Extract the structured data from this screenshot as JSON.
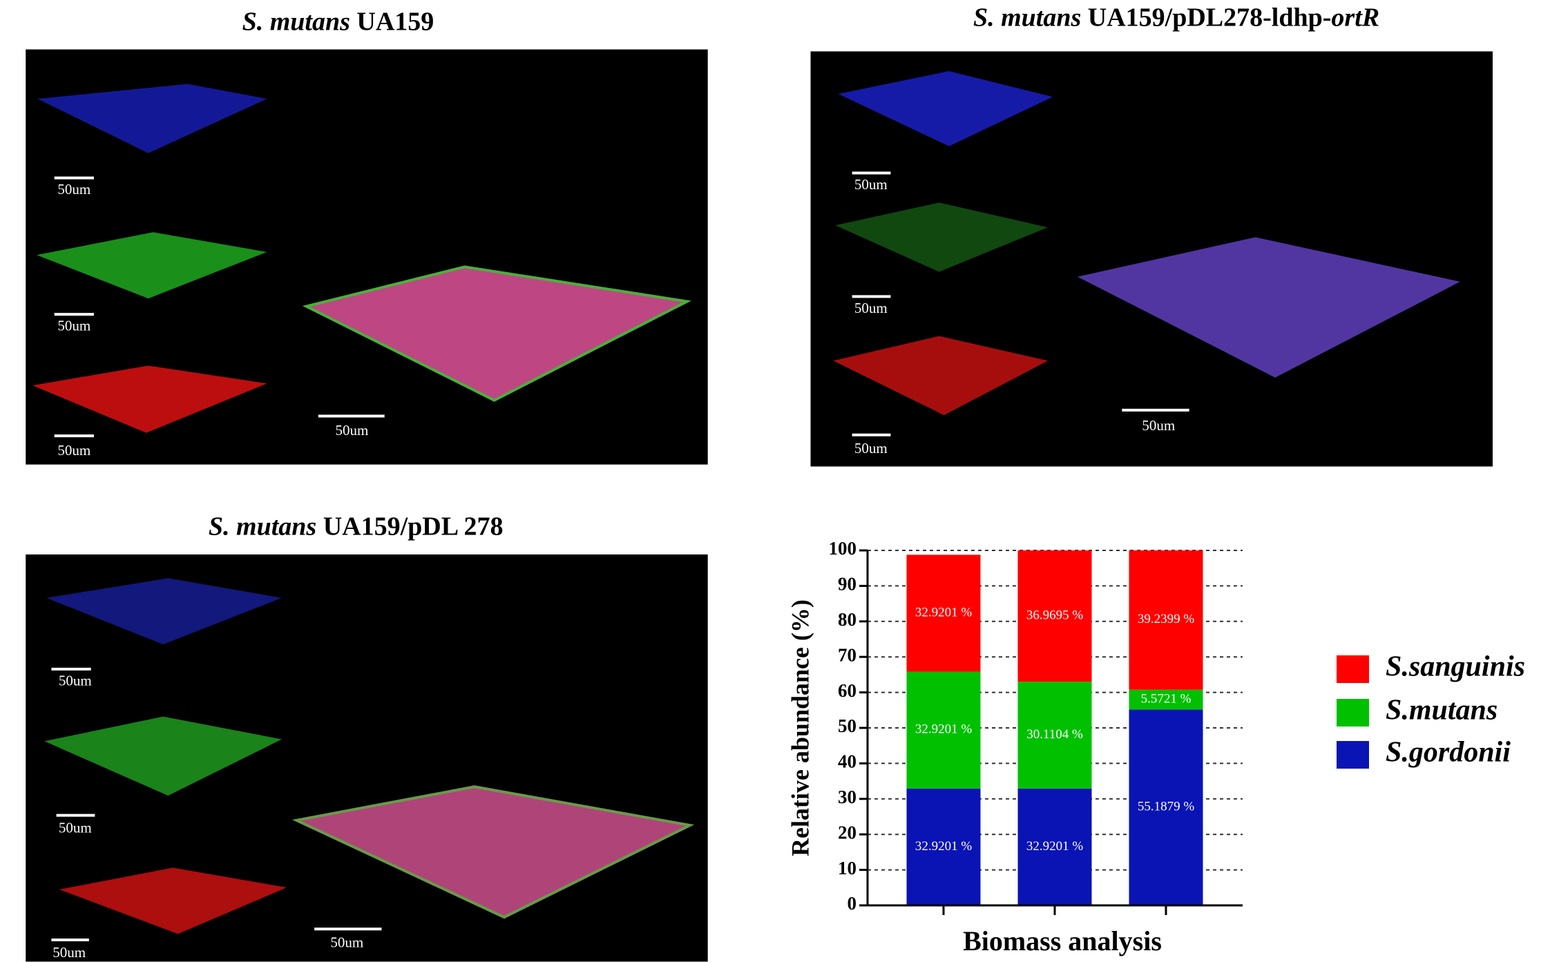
{
  "panels": [
    {
      "title": [
        {
          "text": "S. mutans",
          "italic": true
        },
        {
          "text": " UA159"
        }
      ],
      "scale_labels": [
        "50um",
        "50um",
        "50um",
        "50um"
      ]
    },
    {
      "title": [
        {
          "text": "S. mutans",
          "italic": true
        },
        {
          "text": " UA159/pDL278-ldhp-"
        },
        {
          "text": "ortR",
          "italic": true
        }
      ],
      "scale_labels": [
        "50um",
        "50um",
        "50um",
        "50um"
      ]
    },
    {
      "title": [
        {
          "text": "S. mutans",
          "italic": true
        },
        {
          "text": " UA159/pDL 278"
        }
      ],
      "scale_labels": [
        "50um",
        "50um",
        "50um",
        "50um"
      ]
    }
  ],
  "chart_data": {
    "type": "stacked_bar",
    "categories": [
      null,
      null,
      null
    ],
    "y_label": "Relative abundance (%)",
    "x_label": "Biomass analysis",
    "ylim": [
      0,
      100
    ],
    "yticks": [
      0,
      10,
      20,
      30,
      40,
      50,
      60,
      70,
      80,
      90,
      100
    ],
    "grid": true,
    "series": [
      {
        "name": "S.gordonii",
        "color": "#0a14b4",
        "values": [
          32.9201,
          32.9201,
          55.1879
        ],
        "value_labels": [
          "32.9201 %",
          "32.9201 %",
          "55.1879 %"
        ]
      },
      {
        "name": "S.mutans",
        "color": "#00c000",
        "values": [
          32.9201,
          30.1104,
          5.5721
        ],
        "value_labels": [
          "32.9201 %",
          "30.1104 %",
          "5.5721 %"
        ]
      },
      {
        "name": "S.sanguinis",
        "color": "#ff0000",
        "values": [
          32.9201,
          36.9695,
          39.2399
        ],
        "value_labels": [
          "32.9201 %",
          "36.9695 %",
          "39.2399 %"
        ]
      }
    ],
    "legend": "right"
  }
}
